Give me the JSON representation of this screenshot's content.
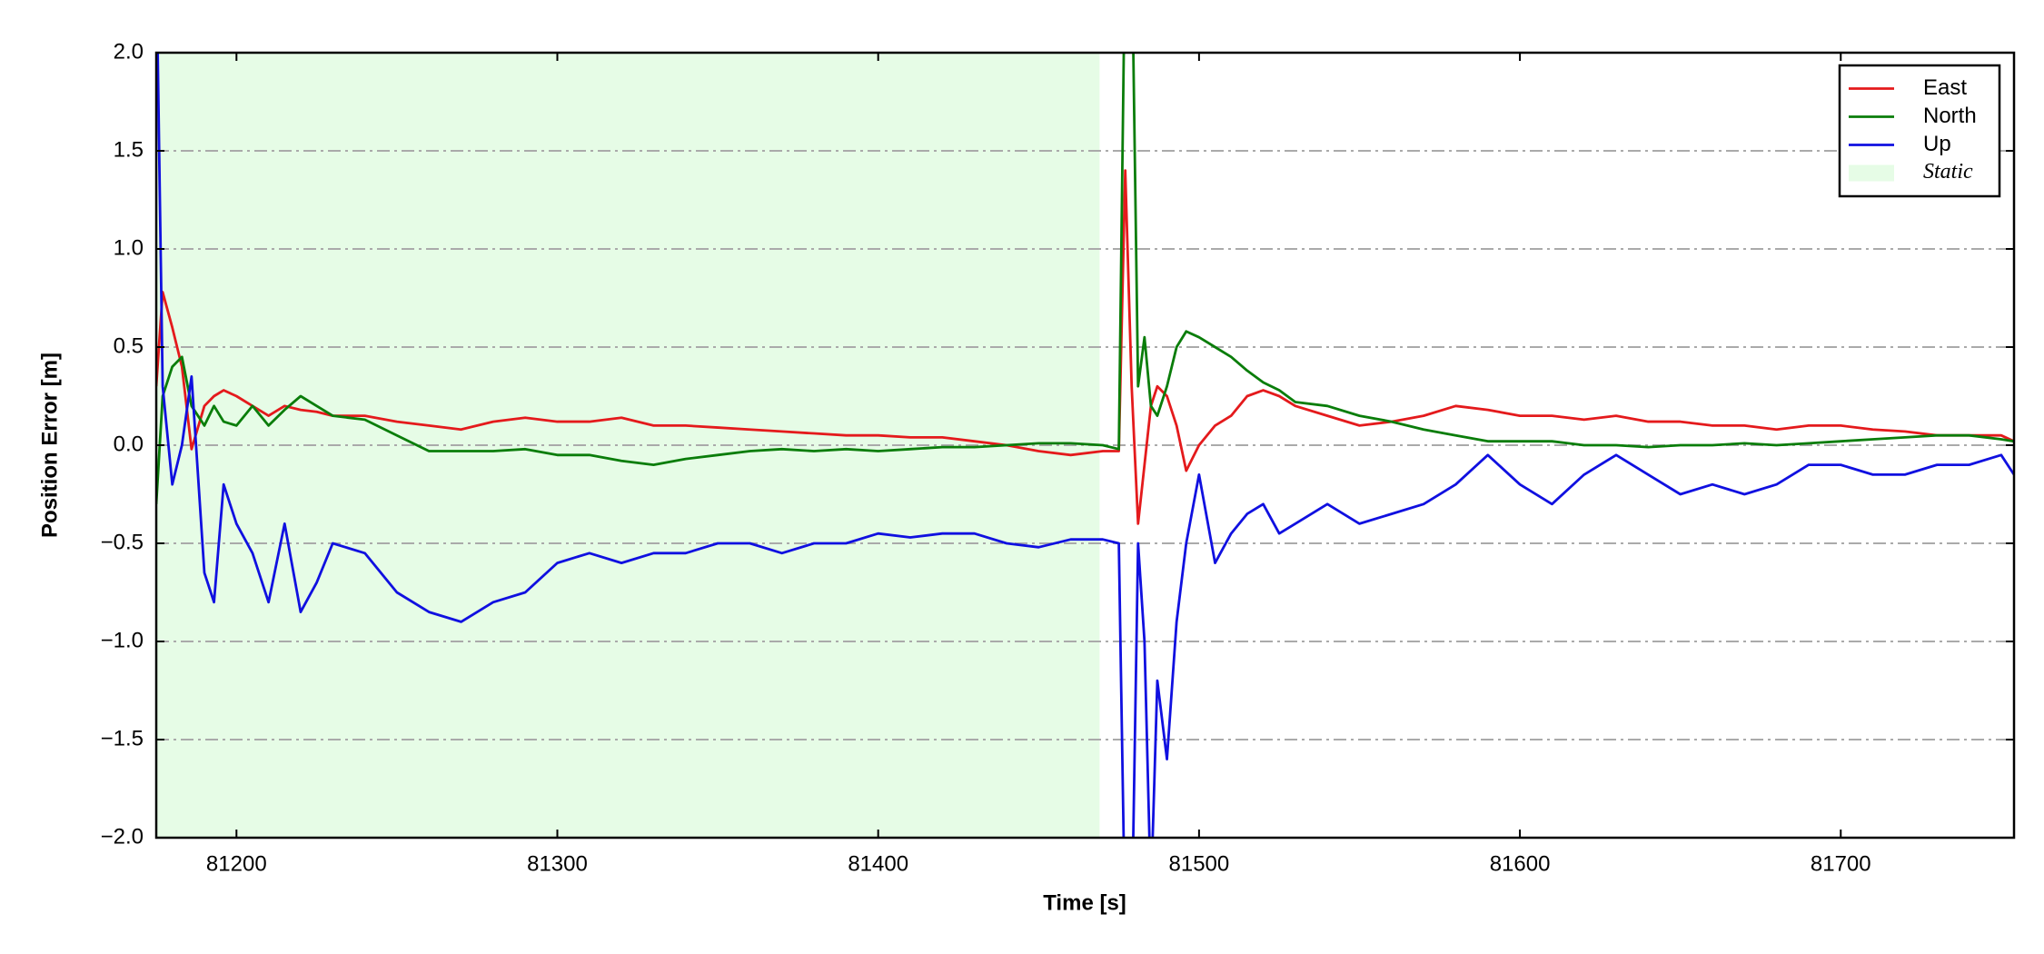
{
  "chart_data": {
    "type": "line",
    "xlabel": "Time [s]",
    "ylabel": "Position Error [m]",
    "x": [
      81175,
      81177,
      81180,
      81183,
      81186,
      81190,
      81193,
      81196,
      81200,
      81205,
      81210,
      81215,
      81220,
      81225,
      81230,
      81240,
      81250,
      81260,
      81270,
      81280,
      81290,
      81300,
      81310,
      81320,
      81330,
      81340,
      81350,
      81360,
      81370,
      81380,
      81390,
      81400,
      81410,
      81420,
      81430,
      81440,
      81450,
      81460,
      81470,
      81475,
      81477,
      81479,
      81481,
      81483,
      81485,
      81487,
      81490,
      81493,
      81496,
      81500,
      81505,
      81510,
      81515,
      81520,
      81525,
      81530,
      81540,
      81550,
      81560,
      81570,
      81580,
      81590,
      81600,
      81610,
      81620,
      81630,
      81640,
      81650,
      81660,
      81670,
      81680,
      81690,
      81700,
      81710,
      81720,
      81730,
      81740,
      81750,
      81754
    ],
    "series": [
      {
        "name": "East",
        "color": "#e41a1c",
        "values": [
          0.3,
          0.78,
          0.6,
          0.4,
          -0.02,
          0.2,
          0.25,
          0.28,
          0.25,
          0.2,
          0.15,
          0.2,
          0.18,
          0.17,
          0.15,
          0.15,
          0.12,
          0.1,
          0.08,
          0.12,
          0.14,
          0.12,
          0.12,
          0.14,
          0.1,
          0.1,
          0.09,
          0.08,
          0.07,
          0.06,
          0.05,
          0.05,
          0.04,
          0.04,
          0.02,
          0.0,
          -0.03,
          -0.05,
          -0.03,
          -0.03,
          1.4,
          0.3,
          -0.4,
          -0.1,
          0.2,
          0.3,
          0.25,
          0.1,
          -0.13,
          0.0,
          0.1,
          0.15,
          0.25,
          0.28,
          0.25,
          0.2,
          0.15,
          0.1,
          0.12,
          0.15,
          0.2,
          0.18,
          0.15,
          0.15,
          0.13,
          0.15,
          0.12,
          0.12,
          0.1,
          0.1,
          0.08,
          0.1,
          0.1,
          0.08,
          0.07,
          0.05,
          0.05,
          0.05,
          0.02
        ]
      },
      {
        "name": "North",
        "color": "#0a7d0a",
        "values": [
          -0.3,
          0.25,
          0.4,
          0.45,
          0.2,
          0.1,
          0.2,
          0.12,
          0.1,
          0.2,
          0.1,
          0.18,
          0.25,
          0.2,
          0.15,
          0.13,
          0.05,
          -0.03,
          -0.03,
          -0.03,
          -0.02,
          -0.05,
          -0.05,
          -0.08,
          -0.1,
          -0.07,
          -0.05,
          -0.03,
          -0.02,
          -0.03,
          -0.02,
          -0.03,
          -0.02,
          -0.01,
          -0.01,
          0.0,
          0.01,
          0.01,
          0.0,
          -0.02,
          2.6,
          2.6,
          0.3,
          0.55,
          0.2,
          0.15,
          0.3,
          0.5,
          0.58,
          0.55,
          0.5,
          0.45,
          0.38,
          0.32,
          0.28,
          0.22,
          0.2,
          0.15,
          0.12,
          0.08,
          0.05,
          0.02,
          0.02,
          0.02,
          0.0,
          0.0,
          -0.01,
          0.0,
          0.0,
          0.01,
          0.0,
          0.01,
          0.02,
          0.03,
          0.04,
          0.05,
          0.05,
          0.03,
          0.02
        ]
      },
      {
        "name": "Up",
        "color": "#1010e0",
        "values": [
          2.5,
          0.3,
          -0.2,
          0.0,
          0.35,
          -0.65,
          -0.8,
          -0.2,
          -0.4,
          -0.55,
          -0.8,
          -0.4,
          -0.85,
          -0.7,
          -0.5,
          -0.55,
          -0.75,
          -0.85,
          -0.9,
          -0.8,
          -0.75,
          -0.6,
          -0.55,
          -0.6,
          -0.55,
          -0.55,
          -0.5,
          -0.5,
          -0.55,
          -0.5,
          -0.5,
          -0.45,
          -0.47,
          -0.45,
          -0.45,
          -0.5,
          -0.52,
          -0.48,
          -0.48,
          -0.5,
          -2.5,
          -2.5,
          -0.5,
          -1.0,
          -2.3,
          -1.2,
          -1.6,
          -0.9,
          -0.5,
          -0.15,
          -0.6,
          -0.45,
          -0.35,
          -0.3,
          -0.45,
          -0.4,
          -0.3,
          -0.4,
          -0.35,
          -0.3,
          -0.2,
          -0.05,
          -0.2,
          -0.3,
          -0.15,
          -0.05,
          -0.15,
          -0.25,
          -0.2,
          -0.25,
          -0.2,
          -0.1,
          -0.1,
          -0.15,
          -0.15,
          -0.1,
          -0.1,
          -0.05,
          -0.15
        ]
      }
    ],
    "shaded_regions": [
      {
        "name": "Static",
        "color": "#e6fce6",
        "x": [
          81175,
          81469
        ]
      }
    ],
    "xlim": [
      81175,
      81754
    ],
    "ylim": [
      -2,
      2
    ],
    "xticks": [
      81200,
      81300,
      81400,
      81500,
      81600,
      81700
    ],
    "yticks": [
      {
        "value": -2,
        "label": "−2.0"
      },
      {
        "value": -1.5,
        "label": "−1.5"
      },
      {
        "value": -1,
        "label": "−1.0"
      },
      {
        "value": -0.5,
        "label": "−0.5"
      },
      {
        "value": 0,
        "label": "0.0"
      },
      0.5,
      {
        "value": 1,
        "label": "1.0"
      },
      1.5,
      {
        "value": 2,
        "label": "2.0"
      }
    ],
    "grid": true,
    "legend": "upper right"
  }
}
